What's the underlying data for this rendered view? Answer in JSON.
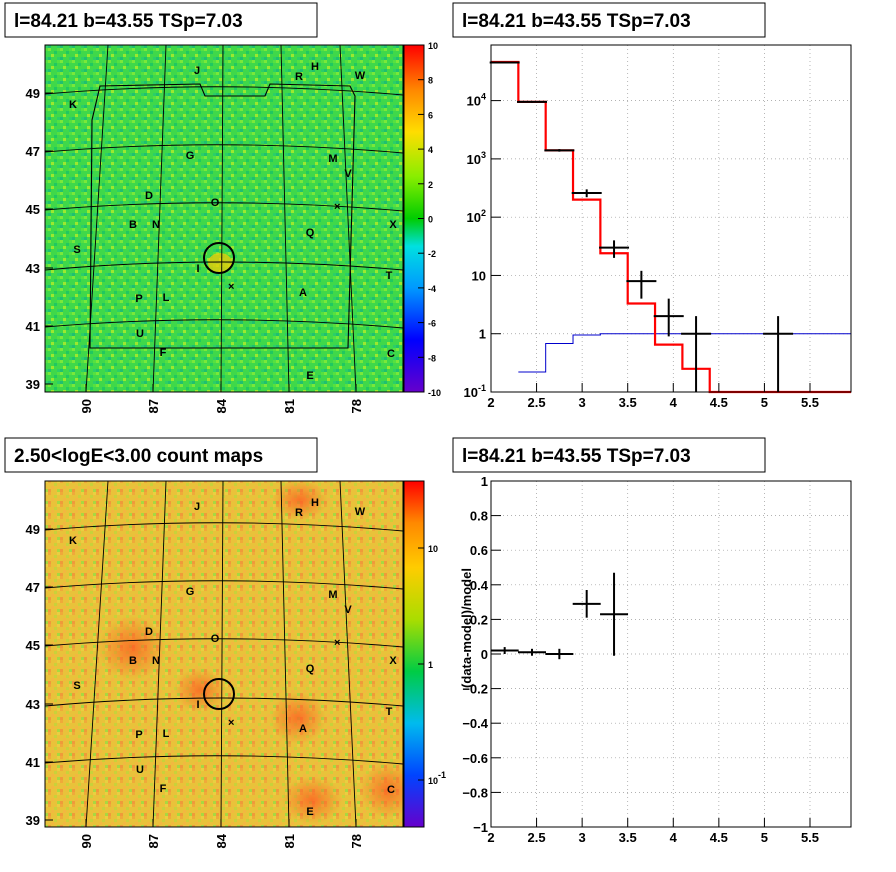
{
  "panels": {
    "tl": {
      "title": "l=84.21 b=43.55 TSp=7.03"
    },
    "tr": {
      "title": "l=84.21 b=43.55 TSp=7.03"
    },
    "bl": {
      "title": "2.50<logE<3.00 count maps"
    },
    "br": {
      "title": "l=84.21 b=43.55 TSp=7.03"
    }
  },
  "colors": {
    "data": "#000000",
    "model_total": "#ff0000",
    "model_source": "#0000cc"
  },
  "chart_data": [
    {
      "id": "residual-map",
      "type": "heatmap",
      "title": "l=84.21 b=43.55 TSp=7.03",
      "x_ticks": [
        "90",
        "87",
        "84",
        "81",
        "78"
      ],
      "y_ticks": [
        "39",
        "41",
        "43",
        "45",
        "47",
        "49"
      ],
      "colorbar_ticks": [
        "10",
        "8",
        "6",
        "4",
        "2",
        "0",
        "-2",
        "-4",
        "-6",
        "-8",
        "-10"
      ],
      "zlim": [
        -10,
        10
      ],
      "source_labels": [
        "J",
        "R",
        "H",
        "W",
        "K",
        "G",
        "M",
        "V",
        "D",
        "O",
        "B",
        "N",
        "Q",
        "X",
        "S",
        "I",
        "T",
        "P",
        "L",
        "A",
        "U",
        "F",
        "C",
        "E"
      ]
    },
    {
      "id": "spectrum",
      "type": "line",
      "title": "l=84.21 b=43.55 TSp=7.03",
      "x_ticks": [
        "2",
        "2.5",
        "3",
        "3.5",
        "4",
        "4.5",
        "5",
        "5.5"
      ],
      "y_ticks": [
        "10^-1",
        "1",
        "10",
        "10^2",
        "10^3",
        "10^4"
      ],
      "xlim": [
        2,
        5.95
      ],
      "ylim": [
        0.1,
        90000
      ],
      "yscale": "log",
      "grid": true,
      "series": [
        {
          "x": [
            2.15,
            2.45,
            2.75,
            3.05,
            3.35,
            3.65,
            3.95,
            4.25,
            5.15
          ],
          "y": [
            45000,
            9500,
            1400,
            260,
            30,
            8,
            2,
            1,
            1
          ],
          "yerr_low": [
            44000,
            9200,
            1330,
            220,
            20,
            4,
            0.9,
            0.1,
            0.1
          ],
          "yerr_high": [
            46000,
            9800,
            1470,
            300,
            40,
            12,
            4,
            2,
            2
          ]
        },
        {
          "edges": [
            2,
            2.3,
            2.6,
            2.9,
            3.2,
            3.5,
            3.8,
            4.1,
            4.4,
            5.95
          ],
          "values": [
            46000,
            9500,
            1400,
            200,
            24,
            3.3,
            0.65,
            0.25,
            0.1
          ]
        },
        {
          "edges": [
            2.3,
            2.6,
            2.9,
            3.2,
            3.5,
            3.8,
            4.1,
            4.4,
            5.95
          ],
          "values": [
            0.22,
            0.68,
            0.95,
            1.0,
            1.0,
            1.0,
            1.0,
            1.0,
            1.0
          ]
        }
      ]
    },
    {
      "id": "count-map",
      "type": "heatmap",
      "title": "2.50<logE<3.00 count maps",
      "x_ticks": [
        "90",
        "87",
        "84",
        "81",
        "78"
      ],
      "y_ticks": [
        "39",
        "41",
        "43",
        "45",
        "47",
        "49"
      ],
      "colorbar_ticks": [
        "10",
        "1",
        "10^-1"
      ],
      "source_labels": [
        "J",
        "R",
        "H",
        "W",
        "K",
        "G",
        "M",
        "V",
        "D",
        "O",
        "B",
        "N",
        "Q",
        "X",
        "S",
        "I",
        "T",
        "P",
        "L",
        "A",
        "U",
        "F",
        "C",
        "E"
      ]
    },
    {
      "id": "residual",
      "type": "scatter",
      "title": "l=84.21 b=43.55 TSp=7.03",
      "ylabel": "(data-model)/model",
      "x_ticks": [
        "2",
        "2.5",
        "3",
        "3.5",
        "4",
        "4.5",
        "5",
        "5.5"
      ],
      "y_ticks": [
        "1",
        "0.8",
        "0.6",
        "0.4",
        "0.2",
        "0",
        "−0.2",
        "−0.4",
        "−0.6",
        "−0.8",
        "−1"
      ],
      "xlim": [
        2,
        5.95
      ],
      "ylim": [
        -1,
        1
      ],
      "grid": true,
      "series": [
        {
          "x": [
            2.15,
            2.45,
            2.75,
            3.05,
            3.35
          ],
          "y": [
            0.02,
            0.01,
            0.0,
            0.29,
            0.23
          ],
          "yerr": [
            0.02,
            0.02,
            0.03,
            0.08,
            0.24
          ]
        }
      ]
    }
  ]
}
